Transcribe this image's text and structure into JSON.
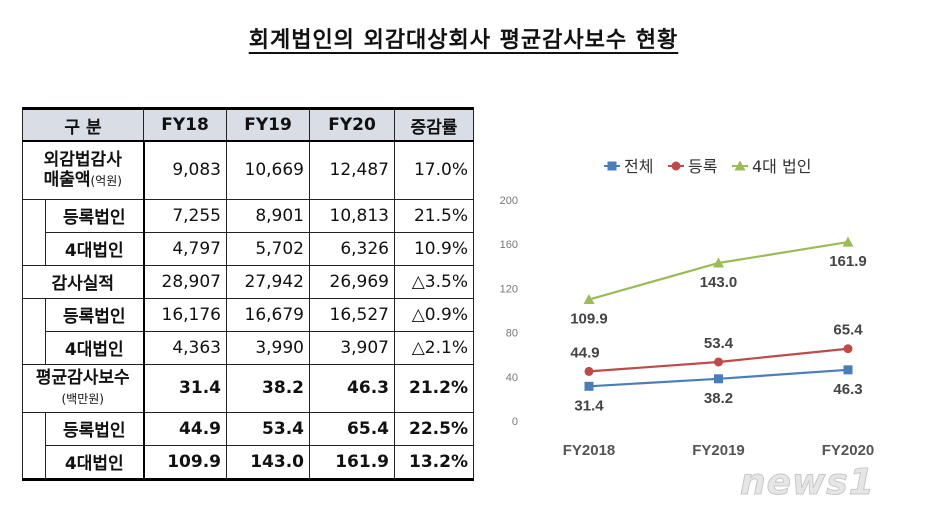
{
  "title": "회계법인의  외감대상회사  평균감사보수  현황",
  "table": {
    "headers": [
      "구  분",
      "FY18",
      "FY19",
      "FY20",
      "증감률"
    ],
    "groups": [
      {
        "label": "외감법감사",
        "label2": "매출액",
        "unit": "(억원)",
        "values": [
          "9,083",
          "10,669",
          "12,487",
          "17.0%"
        ],
        "sub": [
          {
            "label": "등록법인",
            "values": [
              "7,255",
              "8,901",
              "10,813",
              "21.5%"
            ]
          },
          {
            "label": "4대법인",
            "values": [
              "4,797",
              "5,702",
              "6,326",
              "10.9%"
            ]
          }
        ]
      },
      {
        "label": "감사실적",
        "values": [
          "28,907",
          "27,942",
          "26,969",
          "△3.5%"
        ],
        "sub": [
          {
            "label": "등록법인",
            "values": [
              "16,176",
              "16,679",
              "16,527",
              "△0.9%"
            ]
          },
          {
            "label": "4대법인",
            "values": [
              "4,363",
              "3,990",
              "3,907",
              "△2.1%"
            ]
          }
        ]
      },
      {
        "label": "평균감사보수",
        "unit": "(백만원)",
        "values": [
          "31.4",
          "38.2",
          "46.3",
          "21.2%"
        ],
        "sub": [
          {
            "label": "등록법인",
            "values": [
              "44.9",
              "53.4",
              "65.4",
              "22.5%"
            ]
          },
          {
            "label": "4대법인",
            "values": [
              "109.9",
              "143.0",
              "161.9",
              "13.2%"
            ]
          }
        ]
      }
    ]
  },
  "chart_data": {
    "type": "line",
    "categories": [
      "FY2018",
      "FY2019",
      "FY2020"
    ],
    "series": [
      {
        "name": "전체",
        "color": "#4a7ebb",
        "marker": "square",
        "values": [
          31.4,
          38.2,
          46.3
        ],
        "labels": [
          "31.4",
          "38.2",
          "46.3"
        ]
      },
      {
        "name": "등록",
        "color": "#be4b48",
        "marker": "circle",
        "values": [
          44.9,
          53.4,
          65.4
        ],
        "labels": [
          "44.9",
          "53.4",
          "65.4"
        ]
      },
      {
        "name": "4대 법인",
        "color": "#9bbb59",
        "marker": "triangle",
        "values": [
          109.9,
          143.0,
          161.9
        ],
        "labels": [
          "109.9",
          "143.0",
          "161.9"
        ]
      }
    ],
    "yticks": [
      "0",
      "40",
      "80",
      "120",
      "160",
      "200"
    ],
    "ylim": [
      0,
      200
    ],
    "legend": "top"
  },
  "watermark": "news1"
}
